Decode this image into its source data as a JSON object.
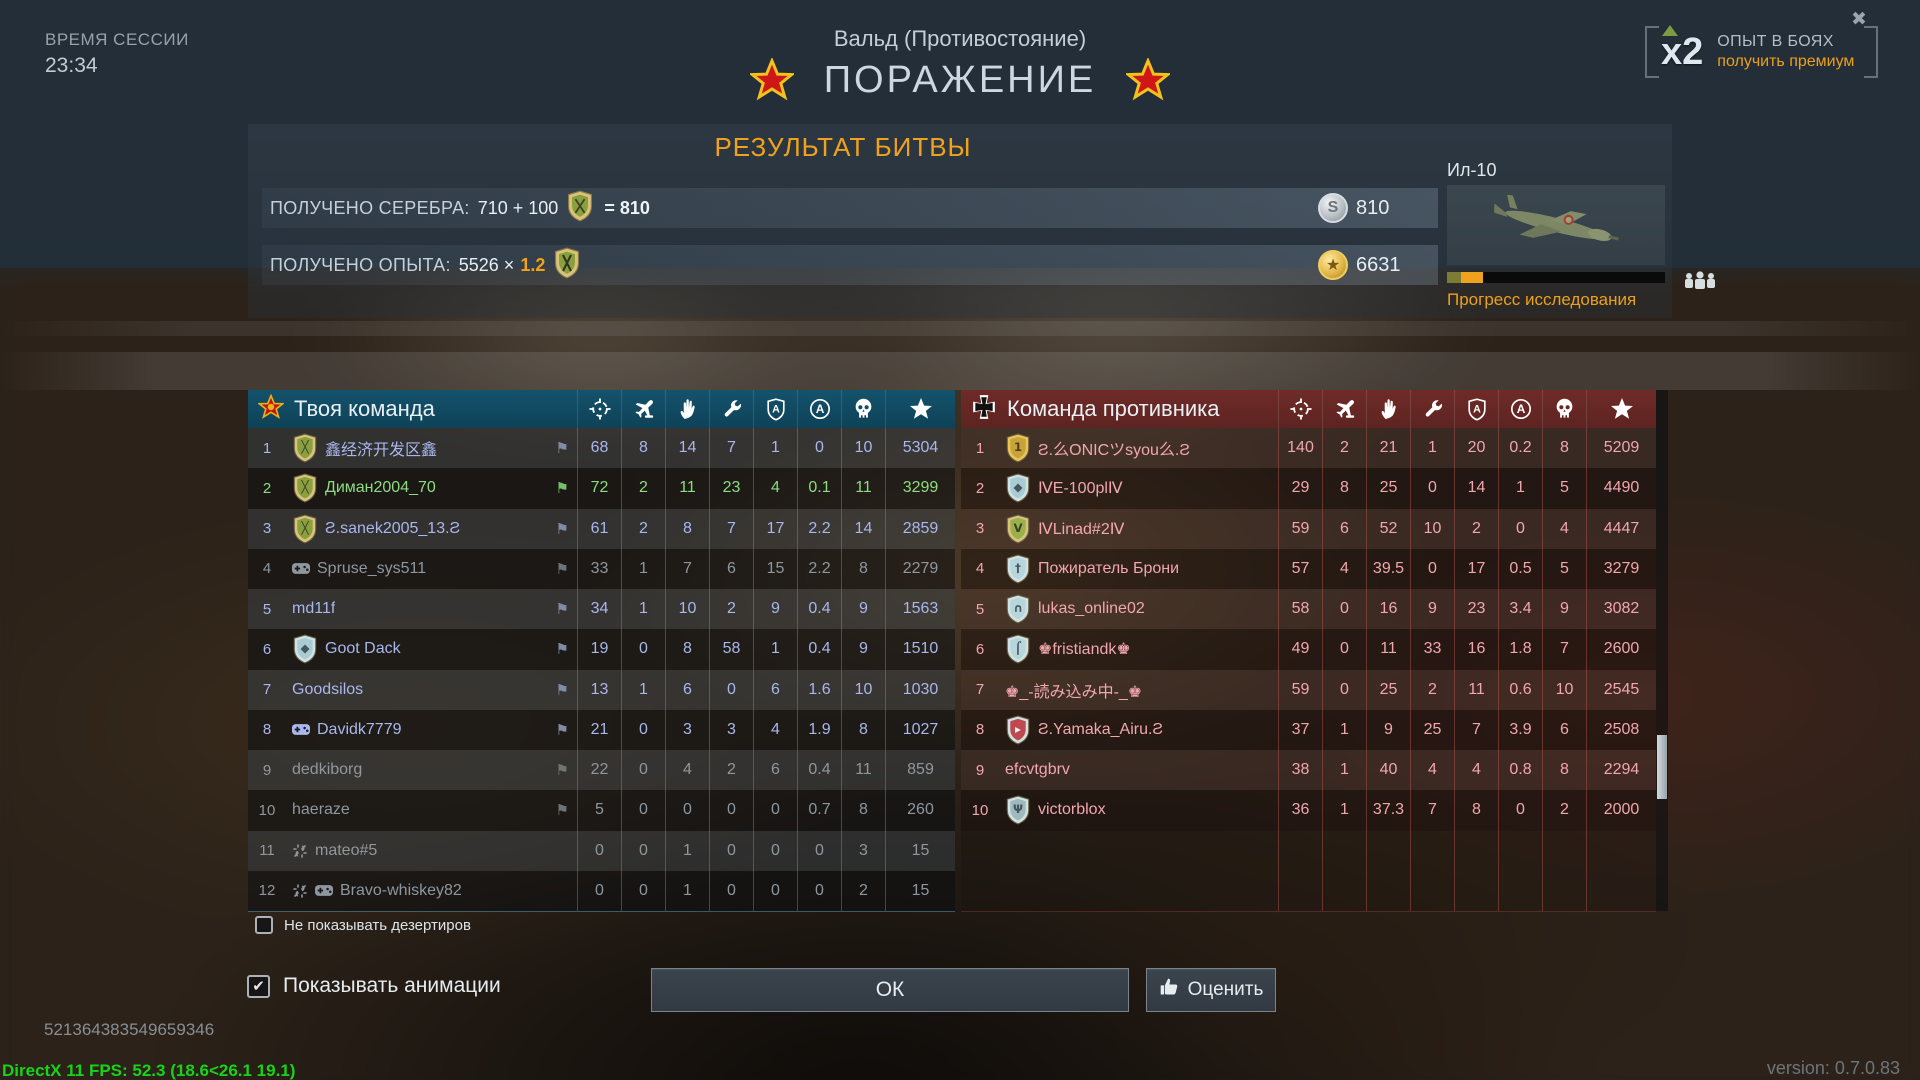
{
  "session": {
    "label": "ВРЕМЯ СЕССИИ",
    "time": "23:34"
  },
  "header": {
    "map_name": "Вальд (Противостояние)",
    "result": "ПОРАЖЕНИЕ"
  },
  "xp_banner": {
    "multiplier": "x2",
    "line1": "ОПЫТ В БОЯХ",
    "line2": "получить премиум"
  },
  "results": {
    "title": "РЕЗУЛЬТАТ БИТВЫ",
    "silver": {
      "label": "ПОЛУЧЕНО СЕРЕБРА:",
      "value": "710 + 100",
      "equals": "= 810",
      "total": "810",
      "coin_icon": "silver-lion-icon"
    },
    "xp": {
      "label": "ПОЛУЧЕНО ОПЫТА:",
      "value": "5526 ×",
      "mult": "1.2",
      "total": "6631",
      "coin_icon": "gold-xp-icon"
    },
    "vehicle": {
      "name": "Ил-10",
      "research_label": "Прогресс исследования",
      "progress_segments": [
        {
          "color": "#7c7c34",
          "pct": 6.5
        },
        {
          "color": "#f0a21c",
          "pct": 10
        }
      ]
    }
  },
  "columns": [
    "ground-kills-crosshair-icon",
    "air-kills-plane-icon",
    "assists-hand-icon",
    "repairs-wrench-icon",
    "captures-shield-a-icon",
    "zone-a-icon",
    "deaths-skull-icon",
    "score-star-icon"
  ],
  "teams": {
    "left": {
      "title": "Твоя команда",
      "emblem": "soviet-star-icon",
      "rows": [
        {
          "rank": 1,
          "badge": "rifles",
          "name": "鑫经济开发区鑫",
          "flag": true,
          "state": "normal",
          "stats": [
            68,
            8,
            14,
            7,
            1,
            0,
            10,
            5304
          ]
        },
        {
          "rank": 2,
          "badge": "rifles",
          "name": "Диман2004_70",
          "flag": true,
          "state": "self",
          "stats": [
            72,
            2,
            11,
            23,
            4,
            0.1,
            11,
            3299
          ]
        },
        {
          "rank": 3,
          "badge": "rifles",
          "name": "Ƨ.sanek2005_13.Ƨ",
          "flag": true,
          "state": "normal",
          "stats": [
            61,
            2,
            8,
            7,
            17,
            2.2,
            14,
            2859
          ]
        },
        {
          "rank": 4,
          "gamepad": true,
          "name": "Spruse_sys511",
          "flag": true,
          "state": "left",
          "stats": [
            33,
            1,
            7,
            6,
            15,
            2.2,
            8,
            2279
          ]
        },
        {
          "rank": 5,
          "name": "md11f",
          "flag": true,
          "state": "normal",
          "stats": [
            34,
            1,
            10,
            2,
            9,
            0.4,
            9,
            1563
          ]
        },
        {
          "rank": 6,
          "badge": "blue",
          "name": "Goot Dack",
          "flag": true,
          "state": "normal",
          "stats": [
            19,
            0,
            8,
            58,
            1,
            0.4,
            9,
            1510
          ]
        },
        {
          "rank": 7,
          "name": "Goodsilos",
          "flag": true,
          "state": "normal",
          "stats": [
            13,
            1,
            6,
            0,
            6,
            1.6,
            10,
            1030
          ]
        },
        {
          "rank": 8,
          "gamepad": true,
          "name": "Davidk7779",
          "flag": true,
          "state": "normal",
          "stats": [
            21,
            0,
            3,
            3,
            4,
            1.9,
            8,
            1027
          ]
        },
        {
          "rank": 9,
          "name": "dedkiborg",
          "flag": true,
          "state": "left",
          "stats": [
            22,
            0,
            4,
            2,
            6,
            0.4,
            11,
            859
          ]
        },
        {
          "rank": 10,
          "name": "haeraze",
          "flag": true,
          "state": "left",
          "stats": [
            5,
            0,
            0,
            0,
            0,
            0.7,
            8,
            260
          ]
        },
        {
          "rank": 11,
          "brokenlink": true,
          "name": "mateo#5",
          "flag": false,
          "state": "left",
          "stats": [
            0,
            0,
            1,
            0,
            0,
            0,
            3,
            15
          ]
        },
        {
          "rank": 12,
          "brokenlink": true,
          "gamepad": true,
          "name": "Bravo-whiskey82",
          "flag": false,
          "state": "left",
          "stats": [
            0,
            0,
            1,
            0,
            0,
            0,
            2,
            15
          ]
        }
      ]
    },
    "right": {
      "title": "Команда противника",
      "emblem": "german-cross-icon",
      "rows": [
        {
          "rank": 1,
          "badge": "gold-first",
          "name": "Ƨ.么ONICツsyou么.Ƨ",
          "state": "enemy",
          "stats": [
            140,
            2,
            21,
            1,
            20,
            0.2,
            8,
            5209
          ]
        },
        {
          "rank": 2,
          "badge": "blue",
          "name": "ⅣE-100plⅣ",
          "state": "enemy",
          "stats": [
            29,
            8,
            25,
            0,
            14,
            1,
            5,
            4490
          ]
        },
        {
          "rank": 3,
          "badge": "engine",
          "name": "ⅣLinad#2Ⅳ",
          "state": "enemy",
          "stats": [
            59,
            6,
            52,
            10,
            2,
            0,
            4,
            4447
          ]
        },
        {
          "rank": 4,
          "badge": "sword",
          "name": "Пожиратель Брони",
          "state": "enemy",
          "stats": [
            57,
            4,
            39.5,
            0,
            17,
            0.5,
            5,
            3279
          ]
        },
        {
          "rank": 5,
          "badge": "headphones",
          "name": "lukas_online02",
          "state": "enemy",
          "stats": [
            58,
            0,
            16,
            9,
            23,
            3.4,
            9,
            3082
          ]
        },
        {
          "rank": 6,
          "badge": "wrench",
          "name": "♚fristiandk♚",
          "state": "enemy",
          "stats": [
            49,
            0,
            11,
            33,
            16,
            1.8,
            7,
            2600
          ]
        },
        {
          "rank": 7,
          "name": "♚_-読み込み中-_♚",
          "state": "enemy",
          "stats": [
            59,
            0,
            25,
            2,
            11,
            0.6,
            10,
            2545
          ]
        },
        {
          "rank": 8,
          "badge": "flagb",
          "name": "Ƨ.Yamaka_Airu.Ƨ",
          "state": "enemy",
          "stats": [
            37,
            1,
            9,
            25,
            7,
            3.9,
            6,
            2508
          ]
        },
        {
          "rank": 9,
          "name": "efcvtgbrv",
          "state": "enemy",
          "stats": [
            38,
            1,
            40,
            4,
            4,
            0.8,
            8,
            2294
          ]
        },
        {
          "rank": 10,
          "badge": "wings",
          "name": "victorblox",
          "state": "enemy",
          "stats": [
            36,
            1,
            37.3,
            7,
            8,
            0,
            2,
            2000
          ]
        }
      ]
    }
  },
  "footer": {
    "deserters_label": "Не показывать дезертиров",
    "animations_label": "Показывать анимации",
    "ok_label": "ОК",
    "rate_label": "Оценить",
    "deserters_checked": false,
    "animations_checked": true
  },
  "debug": {
    "id": "521364383549659346",
    "fps": "DirectX 11 FPS: 52.3 (18.6<26.1 19.1)",
    "version": "version: 0.7.0.83"
  },
  "colors": {
    "accent_orange": "#f0a21c",
    "ally_blue": "#a9b7ee",
    "self_green": "#8edc82",
    "enemy_pink": "#f2a6ae",
    "left_header": "#14536c",
    "right_header": "#6f2b28"
  }
}
